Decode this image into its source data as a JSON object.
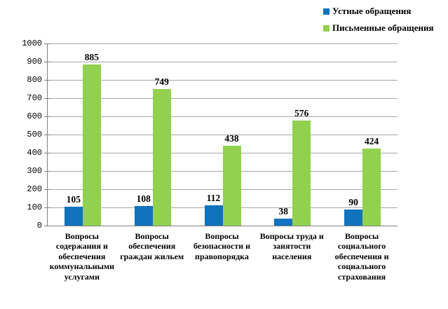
{
  "chart_data": {
    "type": "bar",
    "categories": [
      "Вопросы содержания и обеспечения коммунальными услугами",
      "Вопросы обеспечения граждан жильем",
      "Вопросы безопасности и правопорядка",
      "Вопросы труда и занятости населения",
      "Вопросы социального обеспечения и социального страхования"
    ],
    "series": [
      {
        "name": "Устные обращения",
        "color": "#1173bd",
        "values": [
          105,
          108,
          112,
          38,
          90
        ]
      },
      {
        "name": "Письменные обращения",
        "color": "#92d04f",
        "values": [
          885,
          749,
          438,
          576,
          424
        ]
      }
    ],
    "title": "",
    "xlabel": "",
    "ylabel": "",
    "ylim": [
      0,
      1000
    ],
    "yticks": [
      0,
      100,
      200,
      300,
      400,
      500,
      600,
      700,
      800,
      900,
      1000
    ],
    "grid": true,
    "legend_position": "top-right"
  },
  "colors": {
    "axis": "#808080",
    "gridline": "#a6a6a6",
    "background": "#ffffff",
    "text": "#000000"
  }
}
